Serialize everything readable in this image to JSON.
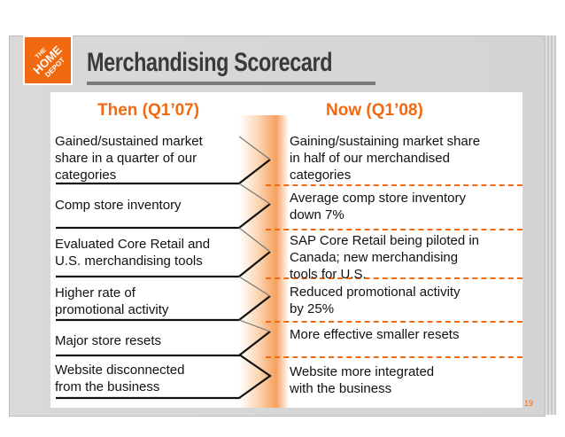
{
  "logo": {
    "text": "THE HOME DEPOT",
    "brand_color": "#f26a10"
  },
  "title": "Merchandising Scorecard",
  "columns": {
    "then_label": "Then (Q1’07)",
    "now_label": "Now (Q1’08)"
  },
  "rows": [
    {
      "then": [
        "Gained/sustained market",
        "share in a quarter of our",
        "categories"
      ],
      "now": [
        "Gaining/sustaining market share",
        "in half of our merchandised",
        "categories"
      ]
    },
    {
      "then": [
        "Comp store inventory"
      ],
      "now": [
        "Average comp store inventory",
        "down 7%"
      ]
    },
    {
      "then": [
        "Evaluated Core Retail and",
        "U.S. merchandising tools"
      ],
      "now": [
        "SAP Core Retail being piloted in",
        "Canada; new merchandising",
        "tools for U.S."
      ]
    },
    {
      "then": [
        "Higher rate of",
        "promotional activity"
      ],
      "now": [
        "Reduced promotional activity",
        "by 25%"
      ]
    },
    {
      "then": [
        "Major store resets"
      ],
      "now": [
        "More effective smaller resets"
      ]
    },
    {
      "then": [
        "Website disconnected",
        "from the business"
      ],
      "now": [
        "Website more integrated",
        "with the business"
      ]
    }
  ],
  "page_number": "19",
  "colors": {
    "accent": "#f26a10",
    "title": "#3a3a3a",
    "frame": "#d6d6d6"
  }
}
